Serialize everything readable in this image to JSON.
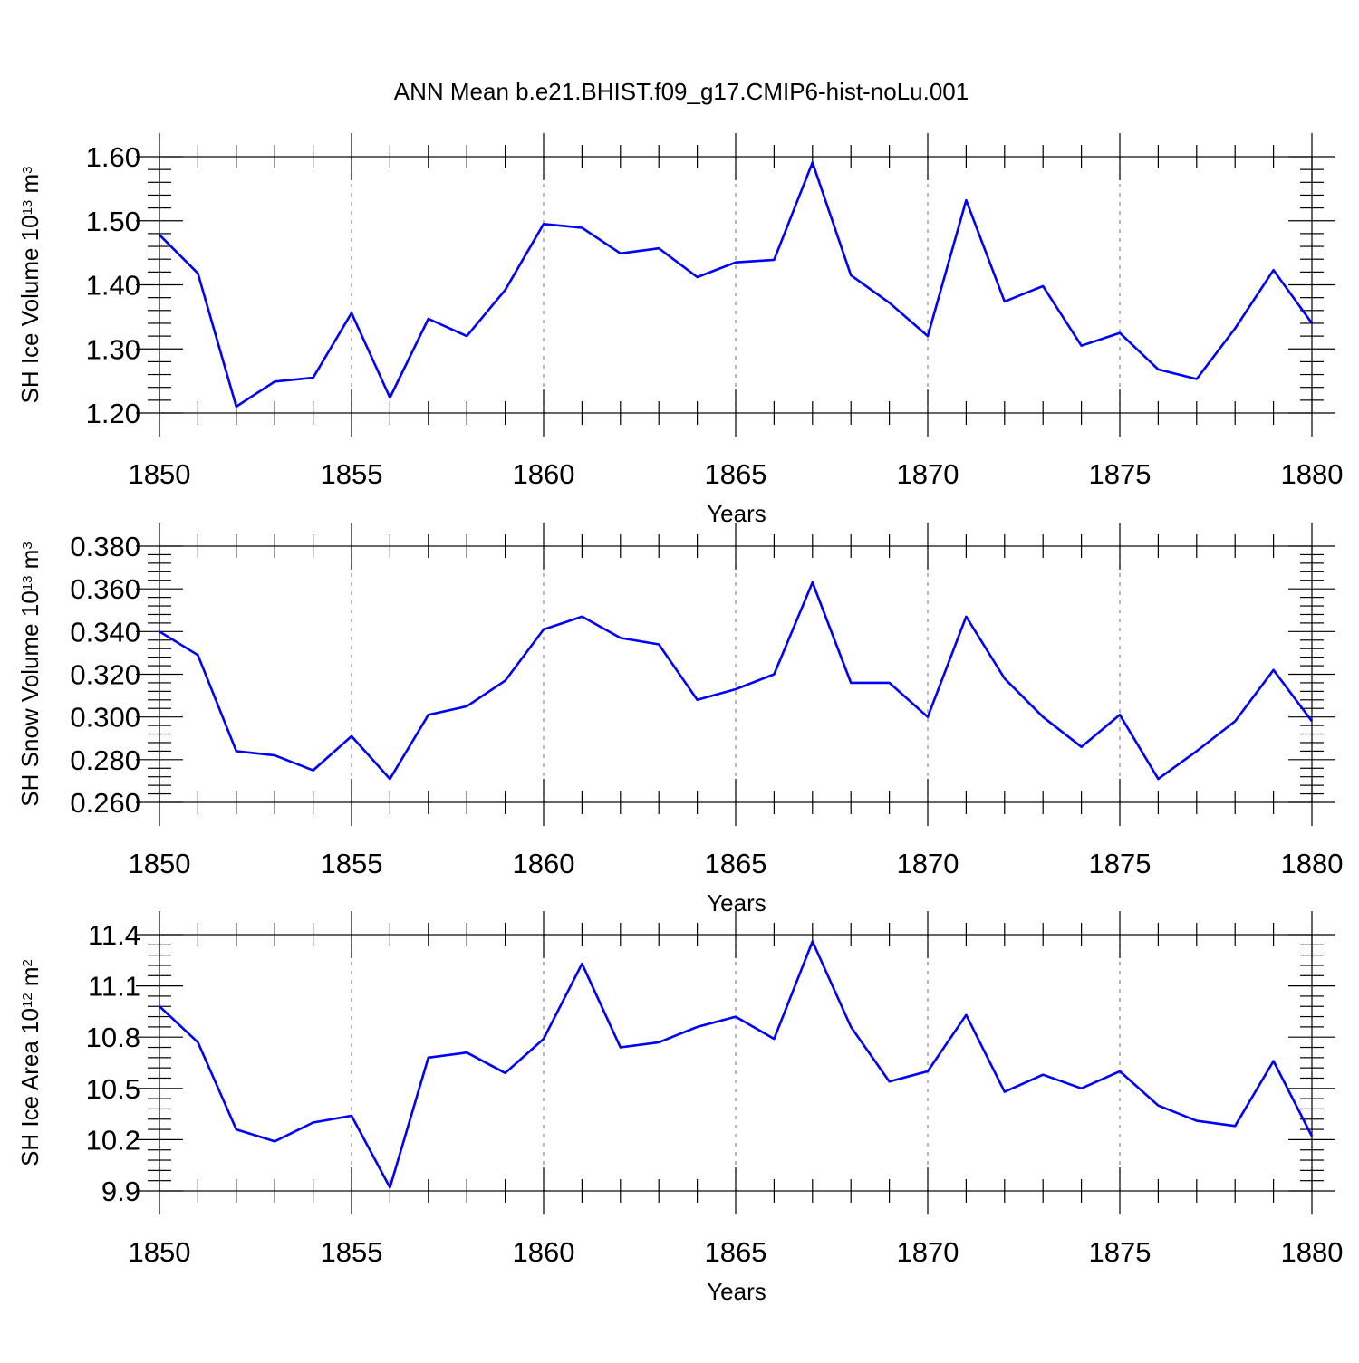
{
  "chart_data": [
    {
      "type": "line",
      "title": "ANN Mean b.e21.BHIST.f09_g17.CMIP6-hist-noLu.001",
      "xlabel": "Years",
      "ylabel_main": "SH Ice Volume 10",
      "ylabel_exp": "13",
      "ylabel_unit": " m",
      "ylabel_unit_exp": "3",
      "xlim": [
        1850,
        1880
      ],
      "ylim": [
        1.2,
        1.6
      ],
      "x_ticks": [
        "1850",
        "1855",
        "1860",
        "1865",
        "1870",
        "1875",
        "1880"
      ],
      "y_ticks": [
        "1.20",
        "1.30",
        "1.40",
        "1.50",
        "1.60"
      ],
      "y_tick_values": [
        1.2,
        1.3,
        1.4,
        1.5,
        1.6
      ],
      "grid": "vertical dashed at major x ticks",
      "line_color": "#0000ff",
      "x": [
        1850,
        1851,
        1852,
        1853,
        1854,
        1855,
        1856,
        1857,
        1858,
        1859,
        1860,
        1861,
        1862,
        1863,
        1864,
        1865,
        1866,
        1867,
        1868,
        1869,
        1870,
        1871,
        1872,
        1873,
        1874,
        1875,
        1876,
        1877,
        1878,
        1879,
        1880
      ],
      "values": [
        1.478,
        1.418,
        1.21,
        1.249,
        1.255,
        1.356,
        1.224,
        1.347,
        1.32,
        1.392,
        1.495,
        1.489,
        1.449,
        1.457,
        1.412,
        1.435,
        1.439,
        1.591,
        1.415,
        1.372,
        1.32,
        1.532,
        1.374,
        1.398,
        1.305,
        1.325,
        1.268,
        1.253,
        1.332,
        1.423,
        1.34
      ]
    },
    {
      "type": "line",
      "title": "",
      "xlabel": "Years",
      "ylabel_main": "SH Snow Volume 10",
      "ylabel_exp": "13",
      "ylabel_unit": " m",
      "ylabel_unit_exp": "3",
      "xlim": [
        1850,
        1880
      ],
      "ylim": [
        0.26,
        0.38
      ],
      "x_ticks": [
        "1850",
        "1855",
        "1860",
        "1865",
        "1870",
        "1875",
        "1880"
      ],
      "y_ticks": [
        "0.260",
        "0.280",
        "0.300",
        "0.320",
        "0.340",
        "0.360",
        "0.380"
      ],
      "y_tick_values": [
        0.26,
        0.28,
        0.3,
        0.32,
        0.34,
        0.36,
        0.38
      ],
      "grid": "vertical dashed at major x ticks",
      "line_color": "#0000ff",
      "x": [
        1850,
        1851,
        1852,
        1853,
        1854,
        1855,
        1856,
        1857,
        1858,
        1859,
        1860,
        1861,
        1862,
        1863,
        1864,
        1865,
        1866,
        1867,
        1868,
        1869,
        1870,
        1871,
        1872,
        1873,
        1874,
        1875,
        1876,
        1877,
        1878,
        1879,
        1880
      ],
      "values": [
        0.34,
        0.329,
        0.284,
        0.282,
        0.275,
        0.291,
        0.271,
        0.301,
        0.305,
        0.317,
        0.341,
        0.347,
        0.337,
        0.334,
        0.308,
        0.313,
        0.32,
        0.363,
        0.316,
        0.316,
        0.3,
        0.347,
        0.318,
        0.3,
        0.286,
        0.301,
        0.271,
        0.284,
        0.298,
        0.322,
        0.298
      ]
    },
    {
      "type": "line",
      "title": "",
      "xlabel": "Years",
      "ylabel_main": "SH Ice Area 10",
      "ylabel_exp": "12",
      "ylabel_unit": " m",
      "ylabel_unit_exp": "2",
      "xlim": [
        1850,
        1880
      ],
      "ylim": [
        9.9,
        11.4
      ],
      "x_ticks": [
        "1850",
        "1855",
        "1860",
        "1865",
        "1870",
        "1875",
        "1880"
      ],
      "y_ticks": [
        "9.9",
        "10.2",
        "10.5",
        "10.8",
        "11.1",
        "11.4"
      ],
      "y_tick_values": [
        9.9,
        10.2,
        10.5,
        10.8,
        11.1,
        11.4
      ],
      "grid": "vertical dashed at major x ticks",
      "line_color": "#0000ff",
      "x": [
        1850,
        1851,
        1852,
        1853,
        1854,
        1855,
        1856,
        1857,
        1858,
        1859,
        1860,
        1861,
        1862,
        1863,
        1864,
        1865,
        1866,
        1867,
        1868,
        1869,
        1870,
        1871,
        1872,
        1873,
        1874,
        1875,
        1876,
        1877,
        1878,
        1879,
        1880
      ],
      "values": [
        10.98,
        10.77,
        10.26,
        10.19,
        10.3,
        10.34,
        9.92,
        10.68,
        10.71,
        10.59,
        10.79,
        11.23,
        10.74,
        10.77,
        10.86,
        10.92,
        10.79,
        11.36,
        10.86,
        10.54,
        10.6,
        10.93,
        10.48,
        10.58,
        10.5,
        10.6,
        10.4,
        10.31,
        10.28,
        10.66,
        10.22
      ]
    }
  ]
}
